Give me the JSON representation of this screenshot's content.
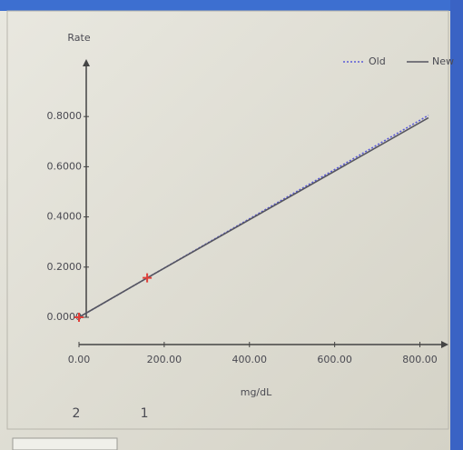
{
  "chart_data": {
    "type": "line",
    "y_label": "Rate",
    "x_label": "mg/dL",
    "xlim": [
      0,
      850
    ],
    "ylim": [
      0,
      1.0
    ],
    "xticks": [
      {
        "value": 0,
        "label": "0.00"
      },
      {
        "value": 200,
        "label": "200.00"
      },
      {
        "value": 400,
        "label": "400.00"
      },
      {
        "value": 600,
        "label": "600.00"
      },
      {
        "value": 800,
        "label": "800.00"
      }
    ],
    "yticks": [
      {
        "value": 0,
        "label": "0.0000"
      },
      {
        "value": 0.2,
        "label": "0.2000"
      },
      {
        "value": 0.4,
        "label": "0.4000"
      },
      {
        "value": 0.6,
        "label": "0.6000"
      },
      {
        "value": 0.8,
        "label": "0.8000"
      }
    ],
    "x": [
      0,
      160,
      820
    ],
    "series": [
      {
        "name": "Old",
        "color": "#5a5ad8",
        "style": "dotted",
        "values": [
          0,
          0.157,
          0.805
        ]
      },
      {
        "name": "New",
        "color": "#55555f",
        "style": "solid",
        "values": [
          0,
          0.157,
          0.795
        ]
      }
    ],
    "calibration_points": {
      "x": [
        0,
        160
      ],
      "values": [
        0,
        0.157
      ],
      "labels": [
        "2",
        "1"
      ],
      "color": "#e0403a"
    },
    "legend": "top-right"
  }
}
